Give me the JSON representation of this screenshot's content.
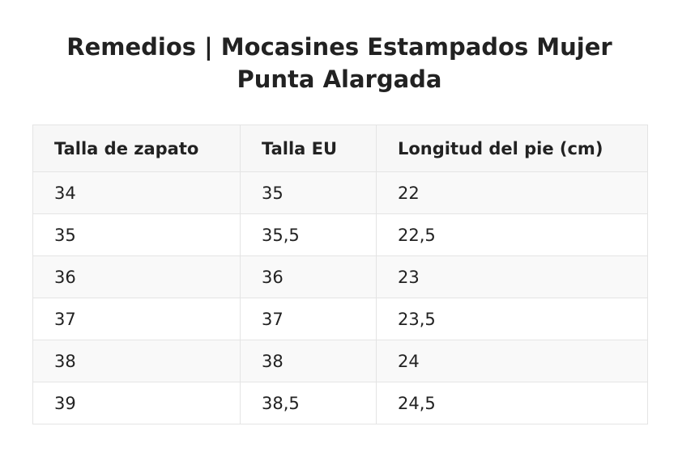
{
  "title": "Remedios | Mocasines Estampados Mujer Punta Alargada",
  "table": {
    "headers": [
      "Talla de zapato",
      "Talla EU",
      "Longitud del pie (cm)"
    ],
    "rows": [
      [
        "34",
        "35",
        "22"
      ],
      [
        "35",
        "35,5",
        "22,5"
      ],
      [
        "36",
        "36",
        "23"
      ],
      [
        "37",
        "37",
        "23,5"
      ],
      [
        "38",
        "38",
        "24"
      ],
      [
        "39",
        "38,5",
        "24,5"
      ]
    ]
  }
}
